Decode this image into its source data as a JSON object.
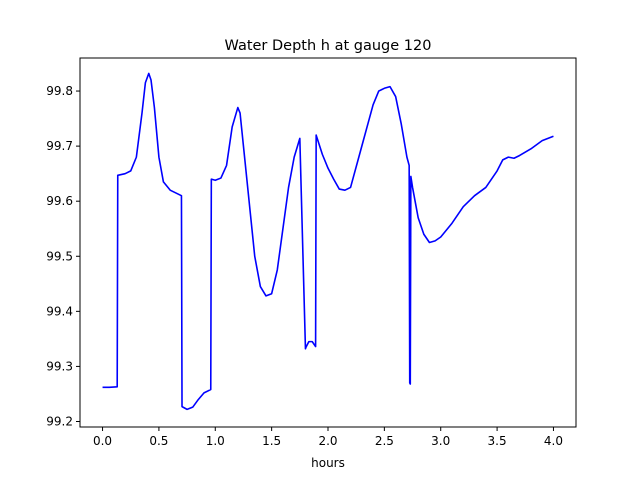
{
  "chart_data": {
    "type": "line",
    "title": "Water Depth h at gauge 120",
    "xlabel": "hours",
    "ylabel": "",
    "xlim": [
      -0.2,
      4.2
    ],
    "ylim": [
      99.19,
      99.86
    ],
    "xticks": [
      0.0,
      0.5,
      1.0,
      1.5,
      2.0,
      2.5,
      3.0,
      3.5,
      4.0
    ],
    "xtick_labels": [
      "0.0",
      "0.5",
      "1.0",
      "1.5",
      "2.0",
      "2.5",
      "3.0",
      "3.5",
      "4.0"
    ],
    "yticks": [
      99.2,
      99.3,
      99.4,
      99.5,
      99.6,
      99.7,
      99.8
    ],
    "ytick_labels": [
      "99.2",
      "99.3",
      "99.4",
      "99.5",
      "99.6",
      "99.7",
      "99.8"
    ],
    "grid": false,
    "line_color": "#0000ff",
    "series": [
      {
        "name": "",
        "x": [
          0.0,
          0.06,
          0.13,
          0.135,
          0.2,
          0.25,
          0.3,
          0.35,
          0.38,
          0.41,
          0.43,
          0.46,
          0.5,
          0.54,
          0.6,
          0.7,
          0.705,
          0.75,
          0.8,
          0.85,
          0.9,
          0.96,
          0.965,
          1.0,
          1.05,
          1.1,
          1.15,
          1.2,
          1.22,
          1.25,
          1.3,
          1.35,
          1.4,
          1.45,
          1.5,
          1.55,
          1.6,
          1.65,
          1.7,
          1.75,
          1.8,
          1.805,
          1.83,
          1.86,
          1.89,
          1.895,
          1.95,
          2.0,
          2.05,
          2.1,
          2.15,
          2.2,
          2.3,
          2.4,
          2.45,
          2.5,
          2.55,
          2.6,
          2.65,
          2.7,
          2.72,
          2.725,
          2.73,
          2.735,
          2.75,
          2.8,
          2.85,
          2.9,
          2.95,
          3.0,
          3.1,
          3.2,
          3.3,
          3.4,
          3.5,
          3.55,
          3.6,
          3.65,
          3.7,
          3.8,
          3.9,
          4.0
        ],
        "y": [
          99.262,
          99.262,
          99.263,
          99.647,
          99.65,
          99.655,
          99.68,
          99.76,
          99.815,
          99.832,
          99.82,
          99.77,
          99.68,
          99.635,
          99.62,
          99.61,
          99.227,
          99.222,
          99.226,
          99.24,
          99.252,
          99.258,
          99.64,
          99.638,
          99.642,
          99.665,
          99.735,
          99.77,
          99.76,
          99.7,
          99.6,
          99.5,
          99.445,
          99.428,
          99.432,
          99.475,
          99.55,
          99.625,
          99.68,
          99.714,
          99.332,
          99.335,
          99.345,
          99.345,
          99.336,
          99.72,
          99.685,
          99.66,
          99.64,
          99.622,
          99.62,
          99.625,
          99.7,
          99.775,
          99.8,
          99.805,
          99.808,
          99.79,
          99.74,
          99.68,
          99.665,
          99.27,
          99.268,
          99.645,
          99.625,
          99.57,
          99.54,
          99.525,
          99.528,
          99.535,
          99.56,
          99.59,
          99.61,
          99.625,
          99.655,
          99.675,
          99.68,
          99.678,
          99.683,
          99.695,
          99.71,
          99.718
        ]
      }
    ]
  }
}
